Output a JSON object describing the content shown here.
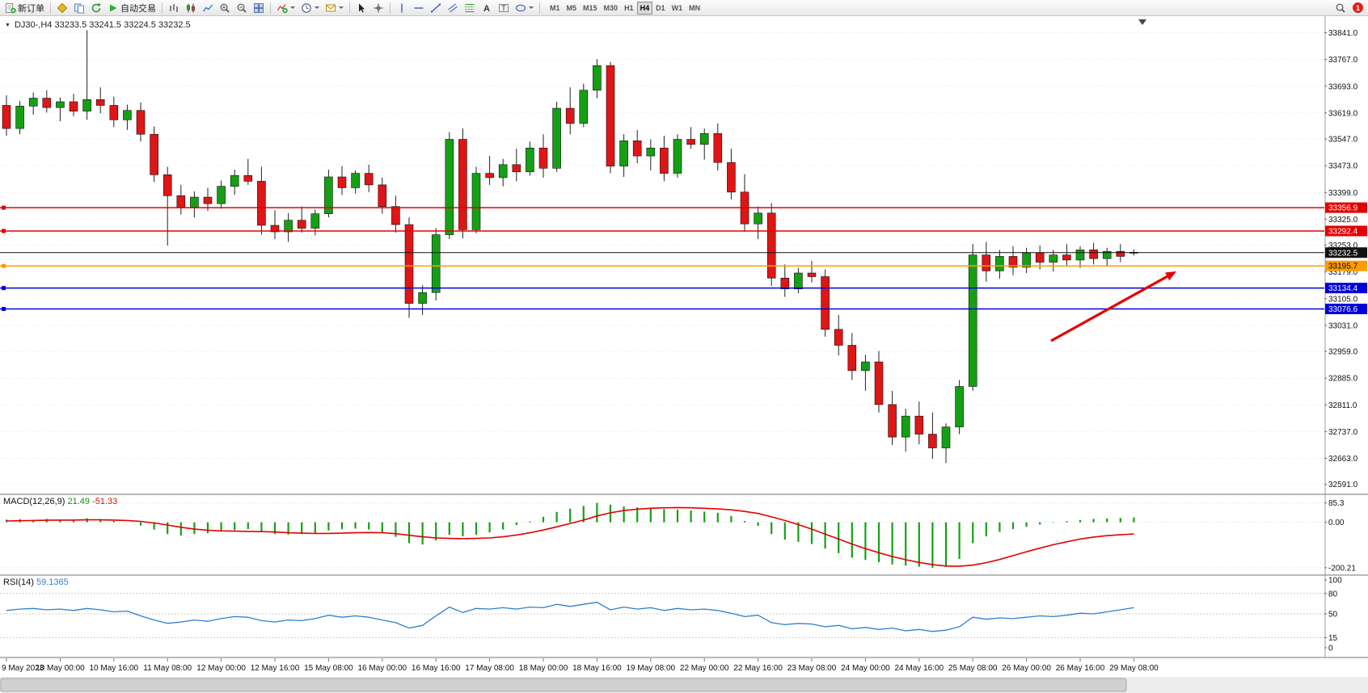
{
  "toolbar": {
    "new_order_label": "新订单",
    "autotrading_label": "自动交易",
    "timeframes": [
      "M1",
      "M5",
      "M15",
      "M30",
      "H1",
      "H4",
      "D1",
      "W1",
      "MN"
    ],
    "active_timeframe": "H4",
    "notification_count": "1"
  },
  "icons": {
    "one_click_toggle": "▼",
    "text_tool": "A",
    "label_tool": "T"
  },
  "chart": {
    "title": "DJ30-,H4 33233.5 33241.5 33224.5 33232.5",
    "price_axis_labels": [
      "33841.0",
      "33767.0",
      "33693.0",
      "33619.0",
      "33547.0",
      "33473.0",
      "33399.0",
      "33325.0",
      "33253.0",
      "33179.0",
      "33105.0",
      "33031.0",
      "32959.0",
      "32885.0",
      "32811.0",
      "32737.0",
      "32663.0",
      "32591.0"
    ],
    "time_axis_labels": [
      "9 May 2023",
      "10 May 00:00",
      "10 May 16:00",
      "11 May 08:00",
      "12 May 00:00",
      "12 May 16:00",
      "15 May 08:00",
      "16 May 00:00",
      "16 May 16:00",
      "17 May 08:00",
      "18 May 00:00",
      "18 May 16:00",
      "19 May 08:00",
      "22 May 00:00",
      "22 May 16:00",
      "23 May 08:00",
      "24 May 00:00",
      "24 May 16:00",
      "25 May 08:00",
      "26 May 00:00",
      "26 May 16:00",
      "29 May 08:00"
    ],
    "levels": [
      {
        "label": "33356.9",
        "price": 33356.9,
        "color": "#e40000",
        "text_color": "#ffffff",
        "kind": "resistance-line"
      },
      {
        "label": "33292.4",
        "price": 33292.4,
        "color": "#e40000",
        "text_color": "#ffffff",
        "kind": "resistance-line"
      },
      {
        "label": "33232.5",
        "price": 33232.5,
        "color": "#111111",
        "text_color": "#ffffff",
        "kind": "current-price-line"
      },
      {
        "label": "33195.7",
        "price": 33195.7,
        "color": "#ff9c00",
        "text_color": "#000000",
        "kind": "pivot-line"
      },
      {
        "label": "33134.4",
        "price": 33134.4,
        "color": "#0000dd",
        "text_color": "#ffffff",
        "kind": "support-line"
      },
      {
        "label": "33076.6",
        "price": 33076.6,
        "color": "#0000dd",
        "text_color": "#ffffff",
        "kind": "support-line"
      }
    ]
  },
  "macd": {
    "name": "MACD(12,26,9)",
    "main_value": "21.49",
    "signal_value": "-51.33",
    "axis_labels": [
      "85.3",
      "0.00",
      "-200.21"
    ]
  },
  "rsi": {
    "name": "RSI(14)",
    "value": "59.1365",
    "axis_labels": [
      "100",
      "80",
      "50",
      "15",
      "0"
    ]
  },
  "chart_data": {
    "type": "candlestick",
    "symbol": "DJ30-",
    "timeframe": "H4",
    "current_bar": {
      "open": 33233.5,
      "high": 33241.5,
      "low": 33224.5,
      "close": 33232.5
    },
    "price_axis_range": [
      32591.0,
      33841.0
    ],
    "colors": {
      "bull": "#14a014",
      "bear": "#e01515",
      "macd_histogram": "#14a014",
      "macd_signal": "#e40000",
      "rsi_line": "#2f7fd0"
    },
    "candles": [
      [
        33640,
        33668,
        33556,
        33576
      ],
      [
        33576,
        33652,
        33560,
        33638
      ],
      [
        33638,
        33676,
        33614,
        33660
      ],
      [
        33660,
        33682,
        33620,
        33634
      ],
      [
        33634,
        33662,
        33596,
        33650
      ],
      [
        33650,
        33672,
        33610,
        33624
      ],
      [
        33624,
        33848,
        33600,
        33656
      ],
      [
        33656,
        33690,
        33618,
        33640
      ],
      [
        33640,
        33664,
        33580,
        33600
      ],
      [
        33600,
        33642,
        33572,
        33626
      ],
      [
        33626,
        33648,
        33540,
        33560
      ],
      [
        33560,
        33582,
        33428,
        33448
      ],
      [
        33448,
        33470,
        33252,
        33390
      ],
      [
        33390,
        33420,
        33338,
        33358
      ],
      [
        33358,
        33402,
        33330,
        33386
      ],
      [
        33386,
        33412,
        33348,
        33368
      ],
      [
        33368,
        33432,
        33354,
        33416
      ],
      [
        33416,
        33462,
        33392,
        33446
      ],
      [
        33446,
        33492,
        33420,
        33430
      ],
      [
        33430,
        33470,
        33282,
        33308
      ],
      [
        33308,
        33350,
        33270,
        33290
      ],
      [
        33290,
        33342,
        33262,
        33322
      ],
      [
        33322,
        33360,
        33288,
        33300
      ],
      [
        33300,
        33352,
        33280,
        33340
      ],
      [
        33340,
        33462,
        33330,
        33442
      ],
      [
        33442,
        33472,
        33392,
        33412
      ],
      [
        33412,
        33460,
        33396,
        33452
      ],
      [
        33452,
        33476,
        33400,
        33420
      ],
      [
        33420,
        33440,
        33340,
        33360
      ],
      [
        33360,
        33390,
        33288,
        33310
      ],
      [
        33310,
        33330,
        33052,
        33092
      ],
      [
        33092,
        33142,
        33060,
        33122
      ],
      [
        33122,
        33300,
        33100,
        33282
      ],
      [
        33282,
        33566,
        33270,
        33546
      ],
      [
        33546,
        33576,
        33272,
        33296
      ],
      [
        33296,
        33470,
        33286,
        33452
      ],
      [
        33452,
        33500,
        33420,
        33440
      ],
      [
        33440,
        33492,
        33416,
        33476
      ],
      [
        33476,
        33520,
        33430,
        33456
      ],
      [
        33456,
        33540,
        33446,
        33522
      ],
      [
        33522,
        33560,
        33440,
        33466
      ],
      [
        33466,
        33650,
        33456,
        33632
      ],
      [
        33632,
        33690,
        33560,
        33590
      ],
      [
        33590,
        33700,
        33580,
        33682
      ],
      [
        33682,
        33768,
        33660,
        33750
      ],
      [
        33750,
        33760,
        33452,
        33472
      ],
      [
        33472,
        33560,
        33442,
        33542
      ],
      [
        33542,
        33572,
        33480,
        33500
      ],
      [
        33500,
        33546,
        33460,
        33522
      ],
      [
        33522,
        33556,
        33430,
        33452
      ],
      [
        33452,
        33560,
        33440,
        33546
      ],
      [
        33546,
        33580,
        33520,
        33532
      ],
      [
        33532,
        33576,
        33490,
        33562
      ],
      [
        33562,
        33590,
        33460,
        33482
      ],
      [
        33482,
        33520,
        33380,
        33400
      ],
      [
        33400,
        33450,
        33290,
        33312
      ],
      [
        33312,
        33360,
        33270,
        33342
      ],
      [
        33342,
        33370,
        33140,
        33162
      ],
      [
        33162,
        33200,
        33110,
        33132
      ],
      [
        33132,
        33190,
        33120,
        33176
      ],
      [
        33176,
        33210,
        33150,
        33166
      ],
      [
        33166,
        33186,
        33000,
        33020
      ],
      [
        33020,
        33060,
        32948,
        32976
      ],
      [
        32976,
        33010,
        32880,
        32906
      ],
      [
        32906,
        32950,
        32850,
        32930
      ],
      [
        32930,
        32960,
        32790,
        32812
      ],
      [
        32812,
        32850,
        32700,
        32722
      ],
      [
        32722,
        32800,
        32682,
        32780
      ],
      [
        32780,
        32820,
        32702,
        32730
      ],
      [
        32730,
        32790,
        32662,
        32692
      ],
      [
        32692,
        32760,
        32650,
        32750
      ],
      [
        32750,
        32880,
        32730,
        32862
      ],
      [
        32862,
        33256,
        32850,
        33226
      ],
      [
        33226,
        33262,
        33152,
        33182
      ],
      [
        33182,
        33240,
        33160,
        33222
      ],
      [
        33222,
        33250,
        33170,
        33192
      ],
      [
        33192,
        33246,
        33176,
        33232
      ],
      [
        33232,
        33252,
        33186,
        33206
      ],
      [
        33206,
        33240,
        33180,
        33226
      ],
      [
        33226,
        33256,
        33196,
        33212
      ],
      [
        33212,
        33250,
        33190,
        33240
      ],
      [
        33240,
        33260,
        33200,
        33216
      ],
      [
        33216,
        33246,
        33196,
        33236
      ],
      [
        33236,
        33256,
        33206,
        33222
      ],
      [
        33233.5,
        33241.5,
        33224.5,
        33232.5
      ]
    ],
    "macd": {
      "scale": [
        -200.21,
        85.3
      ],
      "histogram": [
        12,
        14,
        10,
        15,
        12,
        8,
        18,
        14,
        6,
        0,
        -14,
        -32,
        -52,
        -58,
        -52,
        -48,
        -40,
        -34,
        -30,
        -42,
        -52,
        -54,
        -52,
        -46,
        -36,
        -30,
        -28,
        -32,
        -48,
        -64,
        -92,
        -98,
        -80,
        -55,
        -62,
        -55,
        -45,
        -32,
        -12,
        4,
        24,
        46,
        60,
        72,
        85.3,
        78,
        70,
        66,
        62,
        58,
        56,
        52,
        47,
        42,
        28,
        6,
        -16,
        -52,
        -76,
        -86,
        -96,
        -116,
        -136,
        -156,
        -166,
        -176,
        -186,
        -191,
        -196,
        -200.21,
        -196,
        -162,
        -92,
        -62,
        -42,
        -30,
        -20,
        -10,
        -2,
        5,
        10,
        15,
        17,
        19,
        21.49
      ],
      "signal": [
        6,
        7,
        8,
        9,
        10,
        10,
        11,
        11,
        10,
        8,
        4,
        -3,
        -12,
        -22,
        -30,
        -35,
        -38,
        -39,
        -40,
        -41,
        -43,
        -46,
        -48,
        -49,
        -49,
        -48,
        -46,
        -45,
        -46,
        -50,
        -57,
        -64,
        -69,
        -71,
        -72,
        -71,
        -69,
        -64,
        -56,
        -46,
        -34,
        -20,
        -5,
        10,
        28,
        42,
        52,
        58,
        62,
        64,
        65,
        64,
        62,
        59,
        55,
        48,
        39,
        24,
        8,
        -10,
        -30,
        -52,
        -74,
        -96,
        -116,
        -134,
        -151,
        -165,
        -177,
        -187,
        -193,
        -194,
        -189,
        -178,
        -164,
        -147,
        -130,
        -114,
        -99,
        -86,
        -74,
        -65,
        -59,
        -55,
        -51.33
      ]
    },
    "rsi": {
      "scale": [
        0,
        100
      ],
      "level_lines": [
        80,
        50,
        15
      ],
      "values": [
        55,
        57,
        58,
        56,
        57,
        55,
        58,
        56,
        53,
        54,
        47,
        41,
        36,
        38,
        41,
        39,
        43,
        46,
        45,
        40,
        38,
        41,
        40,
        43,
        48,
        45,
        47,
        45,
        41,
        37,
        29,
        33,
        47,
        60,
        52,
        58,
        57,
        59,
        57,
        60,
        59,
        64,
        61,
        64,
        67,
        56,
        60,
        57,
        59,
        55,
        58,
        56,
        57,
        55,
        51,
        46,
        48,
        37,
        34,
        36,
        35,
        31,
        33,
        28,
        30,
        27,
        29,
        25,
        27,
        24,
        26,
        31,
        45,
        42,
        44,
        43,
        45,
        47,
        46,
        48,
        51,
        50,
        53,
        56,
        59.14
      ]
    },
    "annotations": [
      {
        "type": "arrow",
        "color": "#e40000",
        "from_xy": [
          1300,
          402
        ],
        "to_xy": [
          1455,
          316
        ]
      }
    ]
  }
}
